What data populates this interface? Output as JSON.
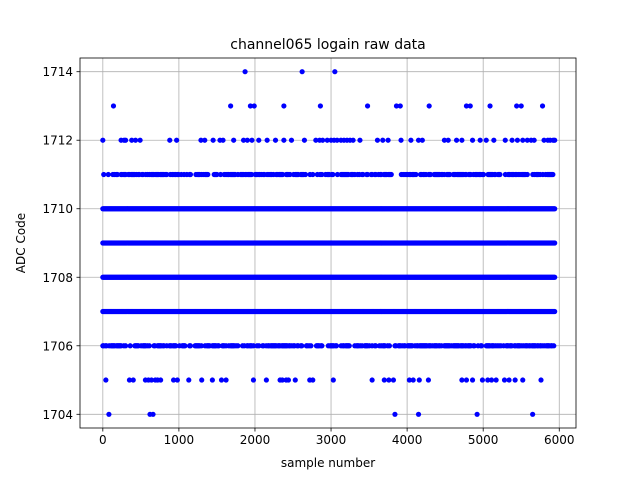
{
  "chart_data": {
    "type": "scatter",
    "title": "channel065 logain raw data",
    "xlabel": "sample number",
    "ylabel": "ADC Code",
    "xlim": [
      -300,
      6220
    ],
    "ylim": [
      1703.6,
      1714.4
    ],
    "xticks": [
      0,
      1000,
      2000,
      3000,
      4000,
      5000,
      6000
    ],
    "xtick_labels": [
      "0",
      "1000",
      "2000",
      "3000",
      "4000",
      "5000",
      "6000"
    ],
    "yticks": [
      1704,
      1706,
      1708,
      1710,
      1712,
      1714
    ],
    "ytick_labels": [
      "1704",
      "1706",
      "1708",
      "1710",
      "1712",
      "1714"
    ],
    "grid": true,
    "marker_color": "#0000ff",
    "sample_range": [
      0,
      5940
    ],
    "series": [
      {
        "values_by_level": [
          {
            "y": 1704,
            "x": [
              80,
              620,
              660,
              3840,
              4150,
              4920,
              5650
            ]
          },
          {
            "y": 1705,
            "x": [
              40,
              350,
              400,
              560,
              600,
              640,
              690,
              720,
              760,
              930,
              980,
              1130,
              1300,
              1440,
              1560,
              1620,
              1980,
              2150,
              2330,
              2360,
              2410,
              2440,
              2530,
              2720,
              2760,
              3030,
              3540,
              3700,
              3760,
              3820,
              4030,
              4080,
              4160,
              4280,
              4720,
              4780,
              4860,
              4990,
              5060,
              5110,
              5170,
              5280,
              5340,
              5420,
              5520,
              5760
            ]
          },
          {
            "y": 1713,
            "x": [
              140,
              1680,
              1940,
              1990,
              2380,
              2860,
              3480,
              3860,
              3910,
              4290,
              4780,
              4830,
              5090,
              5440,
              5500,
              5780
            ]
          },
          {
            "y": 1714,
            "x": [
              1870,
              2620,
              3050
            ]
          },
          {
            "y": 1712,
            "x": [
              0,
              240,
              280,
              300,
              380,
              430,
              490,
              880,
              970,
              1290,
              1340,
              1450,
              1540,
              1580,
              1720,
              1850,
              1900,
              1960,
              2050,
              2160,
              2270,
              2380,
              2480,
              2650,
              2800,
              2850,
              2890,
              2950,
              3000,
              3040,
              3080,
              3130,
              3170,
              3210,
              3250,
              3290,
              3380,
              3610,
              3680,
              3750,
              3920,
              4050,
              4150,
              4200,
              4490,
              4540,
              4650,
              4720,
              4860,
              4960,
              5040,
              5140,
              5290,
              5380,
              5450,
              5520,
              5580,
              5630,
              5670,
              5800,
              5850,
              5880,
              5920,
              5940
            ]
          },
          {
            "y": 1711,
            "x_dense": [
              0,
              5940
            ],
            "density": 0.55
          },
          {
            "y": 1710,
            "x_dense": [
              0,
              5940
            ],
            "density": 1.0
          },
          {
            "y": 1709,
            "x_dense": [
              0,
              5940
            ],
            "density": 1.0
          },
          {
            "y": 1708,
            "x_dense": [
              0,
              5940
            ],
            "density": 1.0
          },
          {
            "y": 1707,
            "x_dense": [
              0,
              5940
            ],
            "density": 1.0
          },
          {
            "y": 1706,
            "x_dense": [
              0,
              5940
            ],
            "density": 0.6
          }
        ]
      }
    ]
  }
}
